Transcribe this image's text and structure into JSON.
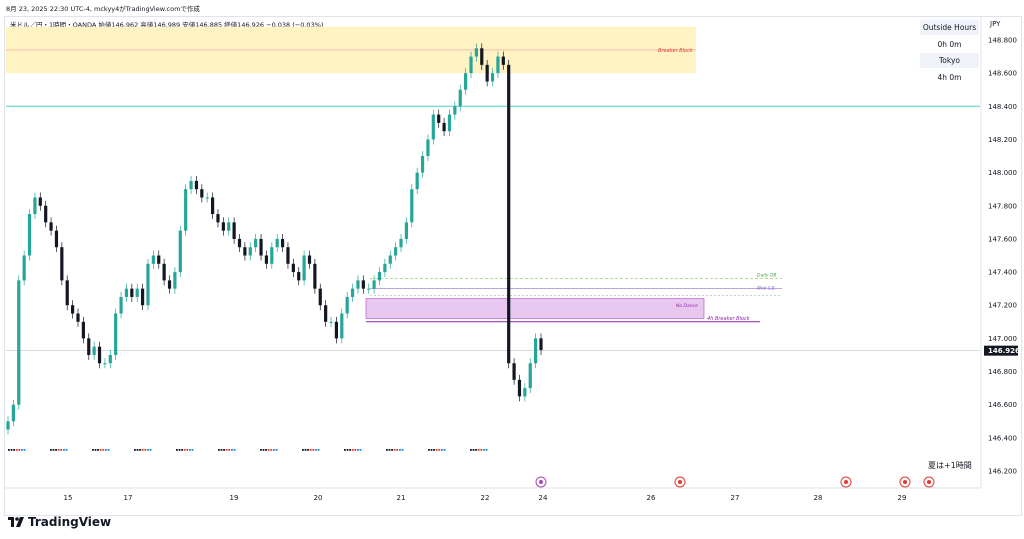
{
  "header": {
    "text": "8月 23, 2025 22:30 UTC-4,  mckyy4がTradingView.comで作成"
  },
  "symbol": {
    "text": "米ドル／円・1時間・OANDA  始値146.962  高値146.989  安値146.885  終値146.926  −0.038 (−0.03%)"
  },
  "session": {
    "outside_label": "Outside Hours",
    "outside_time": "0h 0m",
    "tokyo_label": "Tokyo",
    "tokyo_time": "4h 0m"
  },
  "currency": "JPY",
  "dst_note": "夏は+1時間",
  "logo": "TradingView",
  "colors": {
    "up": "#26a69a",
    "down": "#131722",
    "breaker_fill": "#fff3c4",
    "zone_fill": "#e8c8f0",
    "hline": "#4dd0c8"
  },
  "chart_data": {
    "type": "candlestick",
    "y_axis_ticks": [
      "148.800",
      "148.600",
      "148.400",
      "148.200",
      "148.000",
      "147.800",
      "147.600",
      "147.400",
      "147.200",
      "147.000",
      "146.800",
      "146.600",
      "146.400",
      "146.200"
    ],
    "x_axis_ticks": [
      "15",
      "17",
      "19",
      "20",
      "21",
      "22",
      "24",
      "26",
      "27",
      "28",
      "29"
    ],
    "last_price": "146.926",
    "ylim": [
      146.2,
      148.8
    ],
    "annotations": {
      "breaker_block": {
        "label": "Breaker Block",
        "low": 148.6,
        "high": 148.88
      },
      "h4_breaker_block": {
        "label": "4h Breaker Block",
        "low": 147.12,
        "high": 147.24
      },
      "no_dance": {
        "label": "No Dance"
      },
      "daily_ob": {
        "label": "Daily OB"
      },
      "wick_ce": {
        "label": "Wick C.E."
      },
      "hline_level": 148.4
    },
    "closes": [
      146.5,
      146.6,
      147.35,
      147.5,
      147.75,
      147.85,
      147.8,
      147.7,
      147.65,
      147.55,
      147.35,
      147.2,
      147.15,
      147.1,
      147.0,
      146.9,
      146.95,
      146.85,
      146.85,
      146.9,
      147.15,
      147.25,
      147.3,
      147.25,
      147.3,
      147.2,
      147.45,
      147.5,
      147.45,
      147.35,
      147.3,
      147.4,
      147.65,
      147.9,
      147.95,
      147.9,
      147.85,
      147.85,
      147.75,
      147.7,
      147.65,
      147.7,
      147.6,
      147.55,
      147.5,
      147.55,
      147.6,
      147.5,
      147.45,
      147.55,
      147.6,
      147.55,
      147.45,
      147.4,
      147.35,
      147.5,
      147.45,
      147.3,
      147.2,
      147.1,
      147.1,
      147.0,
      147.15,
      147.25,
      147.3,
      147.35,
      147.3,
      147.3,
      147.35,
      147.4,
      147.45,
      147.5,
      147.55,
      147.6,
      147.7,
      147.9,
      148.0,
      148.1,
      148.2,
      148.35,
      148.3,
      148.25,
      148.35,
      148.4,
      148.5,
      148.6,
      148.7,
      148.75,
      148.65,
      148.55,
      148.6,
      148.7,
      148.65,
      146.85,
      146.75,
      146.65,
      146.7,
      146.85,
      147.0,
      146.93
    ]
  }
}
